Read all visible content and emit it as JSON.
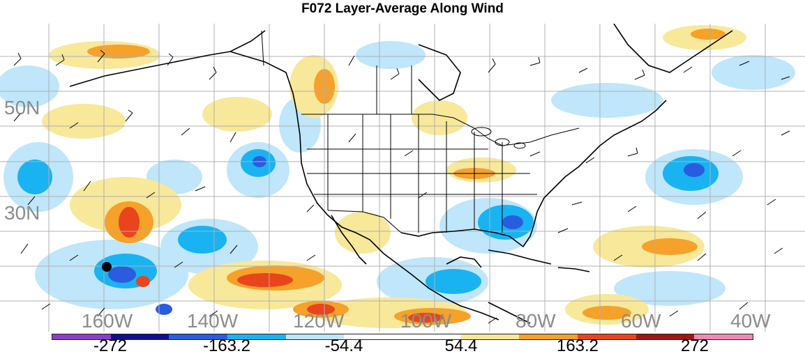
{
  "title": "F072 Layer-Average Along Wind",
  "map": {
    "latitude_labels": [
      "50N",
      "30N"
    ],
    "longitude_labels": [
      "160W",
      "140W",
      "120W",
      "100W",
      "80W",
      "60W",
      "40W"
    ],
    "base_color": "#ffffff",
    "grid_color": "#b0b0b0",
    "boundary_color": "#000000"
  },
  "colorbar": {
    "colors": [
      "#8a3fc8",
      "#10108a",
      "#2a5ce0",
      "#19b3f2",
      "#bfe6fa",
      "#ffffff",
      "#ffffff",
      "#f8e89a",
      "#f5a12a",
      "#e8451c",
      "#a31414",
      "#f08ab4"
    ],
    "labels": [
      "-272",
      "-163.2",
      "-54.4",
      "54.4",
      "163.2",
      "272"
    ]
  }
}
